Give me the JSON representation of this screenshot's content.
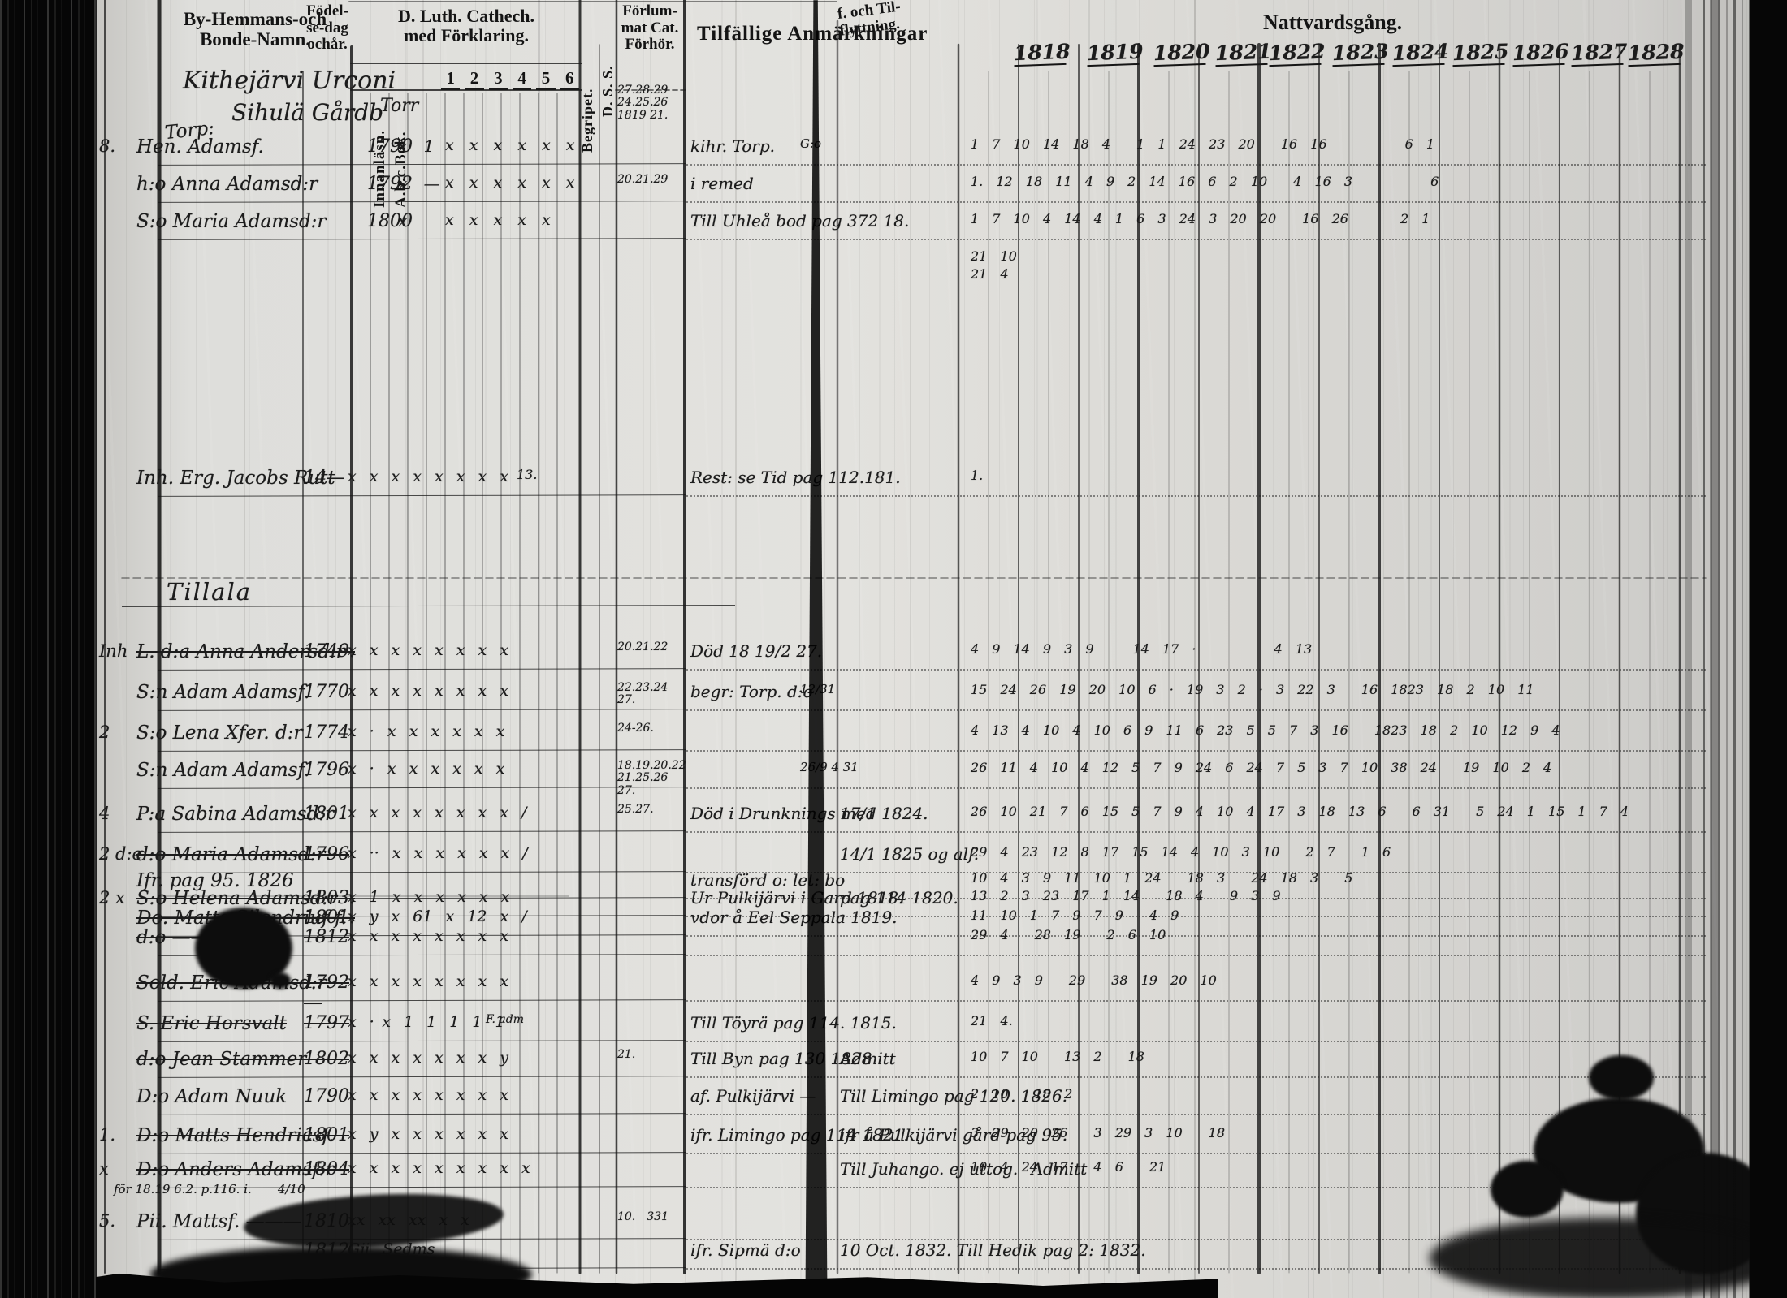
{
  "header": {
    "col_name": "By-Hemmans-och\nBonde-Namn.",
    "col_birth": "Födel-\nse-dag\nochår.",
    "col_abc_1": "Innanläsn.",
    "col_abc_2": "A.b.c.Bok.",
    "col_cathech": "D. Luth. Cathech.\nmed Förklaring.",
    "cathech_numbers": [
      "1",
      "2",
      "3",
      "4",
      "5",
      "6"
    ],
    "col_begripet": "Begripet.",
    "col_dss": "D. S. S.",
    "col_forhor": "Förlum-\nmat Cat.\nFörhör.",
    "col_anm": "Tilfällige Anmärkningar",
    "col_flytt": "f. och Til-\nflyttning.",
    "col_natt": "Nattvardsgång.",
    "years": [
      "1818",
      "1819",
      "1820",
      "1821",
      "1822",
      "1823",
      "1824",
      "1825",
      "1826",
      "1827",
      "1828"
    ]
  },
  "place": {
    "line1": "Kithejärvi Urconi",
    "line2": "Sihulä Gårdb",
    "side": "Torr",
    "torp": "Torp:"
  },
  "rows": [
    {
      "m": "8.",
      "name": "Hen. Adamsf.",
      "born": "1790",
      "abc": "x 1",
      "marks": "x x x x x x",
      "forhor": "27.28.29\n24.25.26\n1819 21.",
      "remark": "kihr. Torp.",
      "remark2": "G:o",
      "natt": "1 7 10 14 18 4  1 1 24 23 20  16 16      6 1"
    },
    {
      "name": "h:o Anna Adamsd:r",
      "born": "1792",
      "abc": "x —",
      "marks": "x x x x x x",
      "forhor": "20.21.29",
      "remark": "i remed",
      "natt": "1. 12 18 11 4 9 2 14 16 6 2 10  4 16 3      6"
    },
    {
      "name": "S:o Maria Adamsd:r",
      "born": "1800",
      "abc": "x",
      "marks": "x x x x x",
      "remark": "Till Uhleå bod pag 372 18.",
      "natt": "1 7 10 4 14 4 1 6 3 24 3 20 20  16 26    2 1"
    },
    {
      "natt": "21 10"
    },
    {
      "natt": "21 4"
    },
    {
      "name": "Inh. Erg. Jacobs Rutt",
      "born": "14—",
      "marks": "x x x x x x x x",
      "forhor": "13.",
      "remark": "Rest: se Tid pag 112.181.",
      "natt": "1."
    },
    {
      "name": "Tillala"
    },
    {
      "m": "Inh",
      "name": "L. d:a Anna Andersd:r",
      "born": "1749.",
      "marks": "x x x x x x x x",
      "forhor": "20.21.22",
      "remark": "Död 18 19/2 27.",
      "natt": "4 9 14 9 3 9   14 17 ·      4 13"
    },
    {
      "name": "S:n Adam Adamsf.",
      "born": "1770",
      "marks": "x x x x x x x x",
      "forhor": "22.23.24\n27.",
      "remark": "begr: Torp. d:o",
      "remark2": "12/31",
      "natt": "15 24 26 19 20 10 6 · 19 3 2 · 3 22 3  16 1823 18 2 10 11"
    },
    {
      "m": "2",
      "name": "S:o Lena Xfer. d:r",
      "born": "1774",
      "marks": "x · x x x x x x",
      "forhor": "24-26.",
      "natt": "4 13 4 10 4 10 6 9 11 6 23 5 5 7 3 16  1823 18 2 10 12 9 4"
    },
    {
      "name": "S:n Adam Adamsf.",
      "born": "1796",
      "marks": "x · x x x x x x",
      "forhor": "18.19.20.22\n21.25.26\n27.",
      "remark2": "26/9 4 31",
      "natt": "26 11 4 10 4 12 5 7 9 24 6 24 7 5 3 7 10 38 24  19 10 2 4"
    },
    {
      "m": "4",
      "name": "P:a Sabina Adamsd:r",
      "born": "1801",
      "marks": "x x x x x x x x /",
      "forhor": "25.27.",
      "remark": "Död i Drunknings med",
      "flytt": "17/1 1824.",
      "natt": "26 10 21 7 6 15 5 7 9 4 10 4 17 3 18 13 6  6 31  5 24 1 15 1 7 4"
    },
    {
      "m": "2 d:e",
      "name": "d:o Maria Adamsd:r",
      "born": "1796",
      "marks": "x ·· x x x x x x /",
      "flytt": "14/1 1825 og alf.",
      "natt": "29 4 23 12 8 17 15 14 4 10 3 10  2 7  1 6"
    },
    {
      "name": "Ifr. pag 95. 1826",
      "remark": "transförd o: let: bo",
      "natt": "10 4 3 9 11 10 1 24  18 3  24 18 3  5"
    },
    {
      "m": "2 x",
      "name": "S:o Helena Adamsd:r",
      "born": "1803.",
      "marks": "x 1 x x x x x x",
      "remark": "Ur Pulkijärvi i Gard 1818.",
      "flytt": "pag 114 1820.",
      "natt": "13 2 3 23 17 1 14  18 4  9 3 9"
    },
    {
      "name": "Do. Matts Silendriuf f.",
      "born": "1801.",
      "marks": "x y x 61 x 12 x /",
      "remark": "vdor å Eel Seppala 1819.",
      "natt": "11 10 1 7 9 7 9  4 9"
    },
    {
      "name": "d:o ——— cauf",
      "born": "1812",
      "marks": "x x x x x x x x",
      "natt": "29 4  28 19  2 6 10"
    },
    {
      "name": "Sold. Eric Adamsd:r",
      "born": "1792—",
      "marks": "x x x x x x x x",
      "natt": "4 9 3 9  29  38 19 20 10"
    },
    {
      "name": "S. Eric Horsvalt",
      "born": "1797",
      "marks": "x · x 1 1 1 1 1",
      "adm": "F. adm",
      "remark": "Till Töyrä pag 114. 1815.",
      "natt": "21 4."
    },
    {
      "name": "d:o Jean Stammer",
      "born": "1802",
      "marks": "x x x x x x x y",
      "forhor": "21.",
      "remark": "Till Byn pag 130 1828",
      "flytt": "Admitt",
      "natt": "10 7 10  13 2  18"
    },
    {
      "name": "D:o Adam Nuuk",
      "born": "1790",
      "marks": "x x x x x x x x",
      "remark": "af. Pulkijärvi —",
      "flytt": "Till Limingo pag 120. 1826.",
      "natt": "2 10  18 2"
    },
    {
      "m": "1.",
      "name": "D:o Matts Hendricsf.",
      "born": "1801",
      "marks": "x y x x x x x x",
      "remark": "ifr. Limingo pag 114 1821.",
      "flytt": "ifr å Pulkijärvi gård pag 95.",
      "natt": "3 29 20 26  3 29 3 10  18"
    },
    {
      "m": "x",
      "name": "D:o Anders Adamsf:r",
      "born": "1804",
      "marks": "x x x x x x x x x",
      "flytt": "Till Juhango. ej uttog.  Admitt",
      "natt": "10 4 24 17  4 6  21"
    },
    {
      "note": "för 18.19 6.2. p.116. i.",
      "note2": "4/10"
    },
    {
      "m": "5.",
      "name": "Pii. Mattsf. ———",
      "born": "1810.",
      "marks": "xx xx xx x x",
      "forhor": "10. 331"
    },
    {
      "born": "1812",
      "marks": "Gji Sedms",
      "remark": "ifr. Sipmä d:o",
      "flytt": "10 Oct. 1832. Till Hedik pag 2: 1832."
    }
  ]
}
